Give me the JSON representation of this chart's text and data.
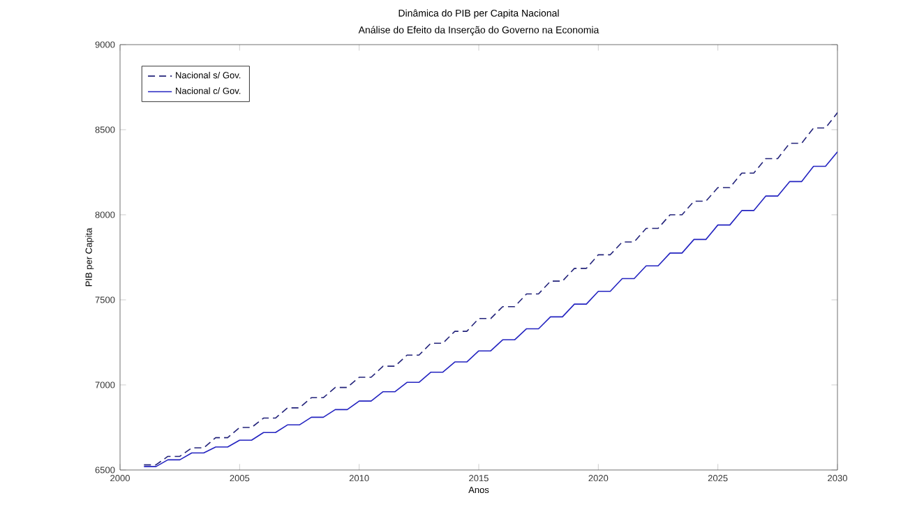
{
  "chart_data": {
    "type": "line",
    "title": "Dinâmica do PIB per Capita Nacional",
    "subtitle": "Análise do Efeito da Inserção do Governo na Economia",
    "xlabel": "Anos",
    "ylabel": "PIB per Capita",
    "x": [
      2001,
      2001.5,
      2002,
      2002.5,
      2003,
      2003.5,
      2004,
      2004.5,
      2005,
      2005.5,
      2006,
      2006.5,
      2007,
      2007.5,
      2008,
      2008.5,
      2009,
      2009.5,
      2010,
      2010.5,
      2011,
      2011.5,
      2012,
      2012.5,
      2013,
      2013.5,
      2014,
      2014.5,
      2015,
      2015.5,
      2016,
      2016.5,
      2017,
      2017.5,
      2018,
      2018.5,
      2019,
      2019.5,
      2020,
      2020.5,
      2021,
      2021.5,
      2022,
      2022.5,
      2023,
      2023.5,
      2024,
      2024.5,
      2025,
      2025.5,
      2026,
      2026.5,
      2027,
      2027.5,
      2028,
      2028.5,
      2029,
      2029.5,
      2030
    ],
    "series": [
      {
        "name": "Nacional s/ Gov.",
        "color": "#23237a",
        "line_style": "dashed",
        "values": [
          6530,
          6530,
          6580,
          6580,
          6630,
          6630,
          6690,
          6690,
          6750,
          6750,
          6805,
          6805,
          6865,
          6865,
          6925,
          6925,
          6985,
          6985,
          7045,
          7045,
          7110,
          7110,
          7175,
          7175,
          7245,
          7245,
          7315,
          7315,
          7390,
          7390,
          7460,
          7460,
          7535,
          7535,
          7610,
          7610,
          7685,
          7685,
          7765,
          7765,
          7840,
          7840,
          7920,
          7920,
          8000,
          8000,
          8080,
          8080,
          8160,
          8160,
          8245,
          8245,
          8330,
          8330,
          8420,
          8420,
          8510,
          8510,
          8600
        ]
      },
      {
        "name": "Nacional c/ Gov.",
        "color": "#2323c0",
        "line_style": "solid",
        "values": [
          6520,
          6520,
          6560,
          6560,
          6600,
          6600,
          6635,
          6635,
          6675,
          6675,
          6720,
          6720,
          6765,
          6765,
          6810,
          6810,
          6855,
          6855,
          6905,
          6905,
          6960,
          6960,
          7015,
          7015,
          7075,
          7075,
          7135,
          7135,
          7200,
          7200,
          7265,
          7265,
          7330,
          7330,
          7400,
          7400,
          7475,
          7475,
          7550,
          7550,
          7625,
          7625,
          7700,
          7700,
          7775,
          7775,
          7855,
          7855,
          7940,
          7940,
          8025,
          8025,
          8110,
          8110,
          8195,
          8195,
          8285,
          8285,
          8370
        ]
      }
    ],
    "xlim": [
      2000,
      2030
    ],
    "ylim": [
      6500,
      9000
    ],
    "xticks": [
      2000,
      2005,
      2010,
      2015,
      2020,
      2025,
      2030
    ],
    "yticks": [
      6500,
      7000,
      7500,
      8000,
      8500,
      9000
    ],
    "grid": false,
    "legend": "top left"
  }
}
